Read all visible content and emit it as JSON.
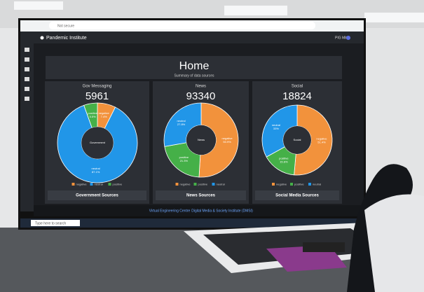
{
  "browser": {
    "security": "Not secure"
  },
  "app_bar": {
    "title": "Pandemic Institute",
    "user": "PIG Mitch"
  },
  "header": {
    "title": "Home",
    "subtitle": "Summary of data sources"
  },
  "panels": [
    {
      "title": "Gov Messaging",
      "count": "5961",
      "center": "Government",
      "dropdown": "Government Sources",
      "slices": [
        {
          "name": "negative",
          "value": 7.4,
          "label": "7.4%",
          "color": "#f2923c"
        },
        {
          "name": "neutral",
          "value": 87.1,
          "label": "87.1%",
          "color": "#2196e8"
        },
        {
          "name": "positive",
          "value": 5.5,
          "label": "5.5%",
          "color": "#45b048"
        }
      ]
    },
    {
      "title": "News",
      "count": "93340",
      "center": "News",
      "dropdown": "News Sources",
      "slices": [
        {
          "name": "negative",
          "value": 50.9,
          "label": "50.9%",
          "color": "#f2923c"
        },
        {
          "name": "positive",
          "value": 21.3,
          "label": "21.3%",
          "color": "#45b048"
        },
        {
          "name": "neutral",
          "value": 27.8,
          "label": "27.8%",
          "color": "#2196e8"
        }
      ]
    },
    {
      "title": "Social",
      "count": "18824",
      "center": "Social",
      "dropdown": "Social Media Sources",
      "slices": [
        {
          "name": "negative",
          "value": 51.4,
          "label": "51.4%",
          "color": "#f2923c"
        },
        {
          "name": "positive",
          "value": 15.6,
          "label": "15.6%",
          "color": "#45b048"
        },
        {
          "name": "neutral",
          "value": 33,
          "label": "33%",
          "color": "#2196e8"
        }
      ]
    }
  ],
  "footer": {
    "left": "Virtual Engineering Centre",
    "right": "Digital Media & Society Institute (DMSI)"
  },
  "taskbar": {
    "search": "Type here to search"
  }
}
